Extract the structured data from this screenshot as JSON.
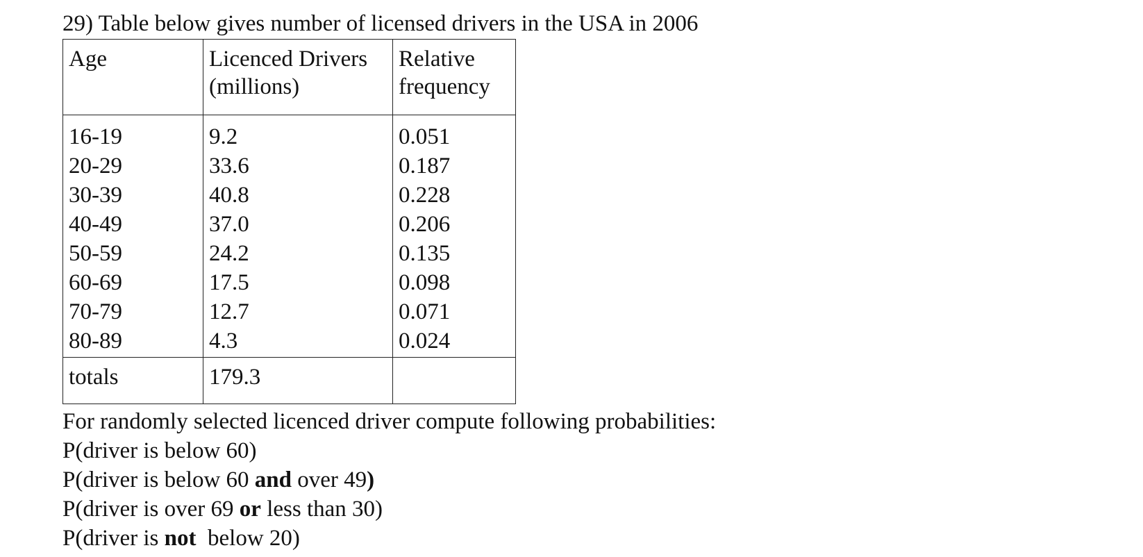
{
  "title": "29) Table below gives number of licensed drivers in the USA in 2006",
  "table": {
    "headers": {
      "age": "Age",
      "licensed_line1": "Licenced Drivers",
      "licensed_line2": "(millions)",
      "relative_line1": "Relative",
      "relative_line2": "frequency"
    },
    "rows": [
      {
        "age": "16-19",
        "licensed": "9.2",
        "relative": "0.051"
      },
      {
        "age": "20-29",
        "licensed": "33.6",
        "relative": "0.187"
      },
      {
        "age": "30-39",
        "licensed": "40.8",
        "relative": "0.228"
      },
      {
        "age": "40-49",
        "licensed": "37.0",
        "relative": "0.206"
      },
      {
        "age": "50-59",
        "licensed": "24.2",
        "relative": "0.135"
      },
      {
        "age": "60-69",
        "licensed": "17.5",
        "relative": "0.098"
      },
      {
        "age": "70-79",
        "licensed": "12.7",
        "relative": "0.071"
      },
      {
        "age": "80-89",
        "licensed": "4.3",
        "relative": "0.024"
      }
    ],
    "totals": {
      "label": "totals",
      "licensed": "179.3",
      "relative": ""
    }
  },
  "instructions": "For randomly selected licenced driver compute following probabilities:",
  "questions": {
    "q1": "P(driver is below 60)",
    "q2_a": "P(driver is below 60 ",
    "q2_bold": "and",
    "q2_b": " over 49",
    "q2_close": ")",
    "q3_a": "P(driver is over 69 ",
    "q3_bold": "or",
    "q3_b": " less than 30)",
    "q4_a": "P(driver is ",
    "q4_bold": "not",
    "q4_b": "  below 20)"
  }
}
